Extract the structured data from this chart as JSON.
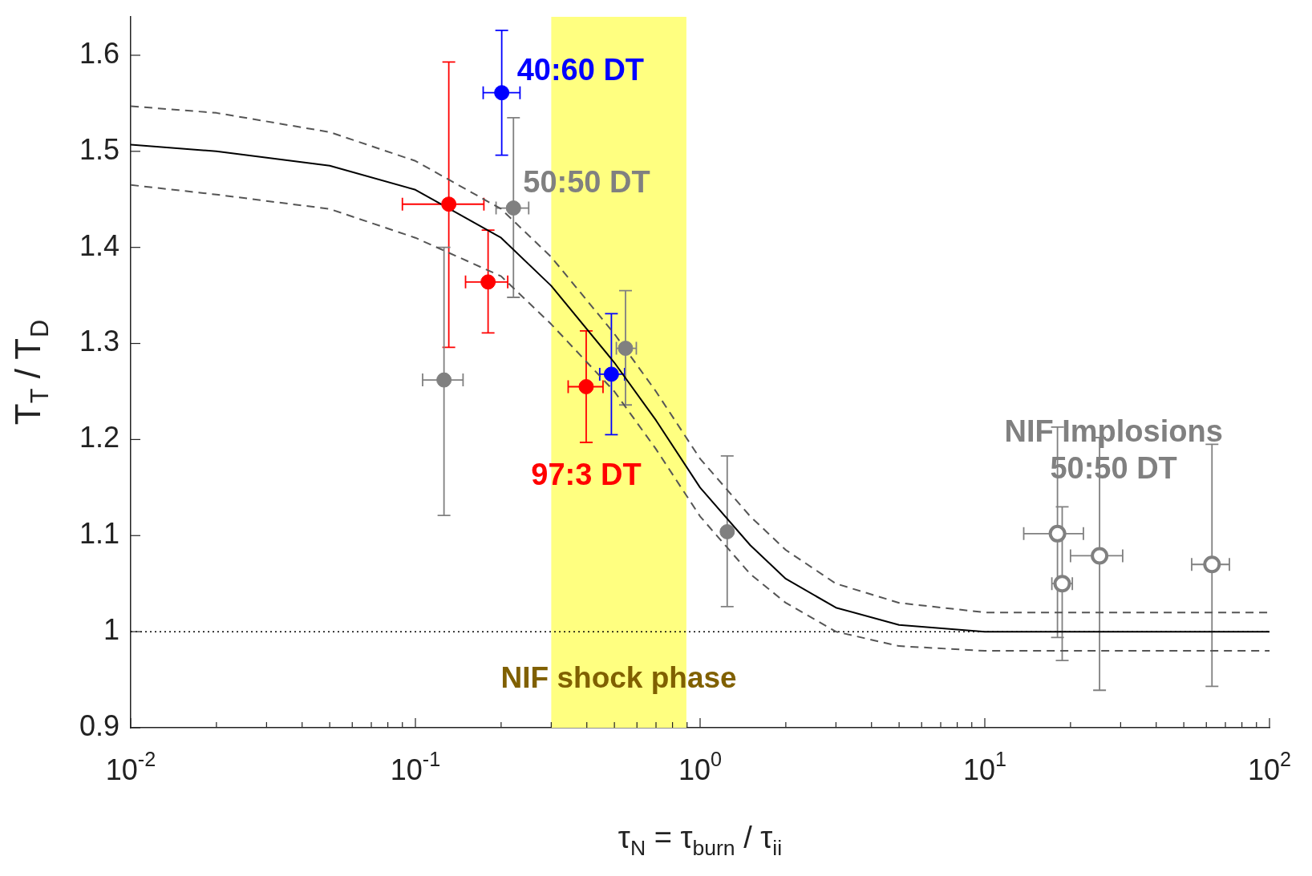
{
  "chart_data": {
    "type": "scatter",
    "xlabel": "τ$_{N}$ = τ$_{burn}$ / τ$_{ii}$",
    "ylabel": "T$_{T}$ / T$_{D}$",
    "log": "x",
    "xlim": [
      0.01,
      100
    ],
    "ylim": [
      0.9,
      1.64
    ],
    "xticks": [
      {
        "value": 0.01,
        "label": "10$^{-2}$"
      },
      {
        "value": 0.02,
        "label": null
      },
      {
        "value": 0.03,
        "label": null
      },
      {
        "value": 0.04,
        "label": null
      },
      {
        "value": 0.05,
        "label": null
      },
      {
        "value": 0.06,
        "label": null
      },
      {
        "value": 0.07,
        "label": null
      },
      {
        "value": 0.08,
        "label": null
      },
      {
        "value": 0.09,
        "label": null
      },
      {
        "value": 0.1,
        "label": "10$^{-1}$"
      },
      {
        "value": 0.2,
        "label": null
      },
      {
        "value": 0.3,
        "label": null
      },
      {
        "value": 0.4,
        "label": null
      },
      {
        "value": 0.5,
        "label": null
      },
      {
        "value": 0.6,
        "label": null
      },
      {
        "value": 0.7,
        "label": null
      },
      {
        "value": 0.8,
        "label": null
      },
      {
        "value": 0.9,
        "label": null
      },
      {
        "value": 1,
        "label": "10$^{0}$"
      },
      {
        "value": 2,
        "label": null
      },
      {
        "value": 3,
        "label": null
      },
      {
        "value": 4,
        "label": null
      },
      {
        "value": 5,
        "label": null
      },
      {
        "value": 6,
        "label": null
      },
      {
        "value": 7,
        "label": null
      },
      {
        "value": 8,
        "label": null
      },
      {
        "value": 9,
        "label": null
      },
      {
        "value": 10,
        "label": "10$^{1}$"
      },
      {
        "value": 20,
        "label": null
      },
      {
        "value": 30,
        "label": null
      },
      {
        "value": 40,
        "label": null
      },
      {
        "value": 50,
        "label": null
      },
      {
        "value": 60,
        "label": null
      },
      {
        "value": 70,
        "label": null
      },
      {
        "value": 80,
        "label": null
      },
      {
        "value": 90,
        "label": null
      },
      {
        "value": 100,
        "label": "10$^{2}$"
      }
    ],
    "yticks": [
      0.9,
      1,
      1.1,
      1.2,
      1.3,
      1.4,
      1.5,
      1.6
    ],
    "grid": false,
    "legend": false,
    "series": [
      {
        "name": "97:3 DT",
        "marker": "circle",
        "color": "#ff0000",
        "x": [
          0.131,
          0.18,
          0.398
        ],
        "values": [
          1.445,
          1.364,
          1.255
        ],
        "errors": [
          [
            1.296,
            1.593
          ],
          [
            1.311,
            1.418
          ],
          [
            1.197,
            1.313
          ]
        ],
        "xerrors": [
          [
            0.09,
            0.174
          ],
          [
            0.15,
            0.211
          ],
          [
            0.344,
            0.456
          ]
        ]
      },
      {
        "name": "40:60 DT",
        "marker": "circle",
        "color": "#0000ff",
        "x": [
          0.201,
          0.488
        ],
        "values": [
          1.561,
          1.268
        ],
        "errors": [
          [
            1.496,
            1.626
          ],
          [
            1.205,
            1.331
          ]
        ],
        "xerrors": [
          [
            0.173,
            0.233
          ],
          [
            0.444,
            0.543
          ]
        ]
      },
      {
        "name": "50:50 DT",
        "marker": "circle",
        "color": "#808080",
        "x": [
          0.126,
          0.221,
          0.547,
          1.245
        ],
        "values": [
          1.262,
          1.441,
          1.295,
          1.104
        ],
        "errors": [
          [
            1.121,
            1.4
          ],
          [
            1.348,
            1.535
          ],
          [
            1.236,
            1.355
          ],
          [
            1.026,
            1.183
          ]
        ],
        "xerrors": [
          [
            0.106,
            0.147
          ],
          [
            0.192,
            0.25
          ],
          [
            0.508,
            0.597
          ],
          null
        ]
      },
      {
        "name": "NIF Implosions\n50:50 DT",
        "marker": "circle",
        "color": "#808080",
        "x": [
          18.0,
          18.7,
          25.3,
          62.8
        ],
        "values": [
          1.102,
          1.05,
          1.079,
          1.07
        ],
        "errors": [
          [
            0.994,
            1.213
          ],
          [
            0.97,
            1.13
          ],
          [
            0.939,
            1.202
          ],
          [
            0.943,
            1.195
          ]
        ],
        "xerrors": [
          [
            13.7,
            22.2
          ],
          [
            17.2,
            20.3
          ],
          [
            20.0,
            30.5
          ],
          [
            53.3,
            72.3
          ]
        ]
      },
      {
        "type": "line",
        "marker": "none",
        "line_style": "solid",
        "color": "#000000",
        "x": [
          0.01,
          0.02,
          0.05,
          0.1,
          0.2,
          0.3,
          0.5,
          0.7,
          1,
          1.5,
          2,
          3,
          5,
          10,
          100
        ],
        "values": [
          1.507,
          1.5,
          1.485,
          1.46,
          1.41,
          1.36,
          1.28,
          1.22,
          1.15,
          1.09,
          1.055,
          1.025,
          1.007,
          1.0,
          1.0
        ]
      },
      {
        "type": "line",
        "marker": "none",
        "line_style": "dashed",
        "color": "#555555",
        "x": [
          0.01,
          0.02,
          0.05,
          0.1,
          0.2,
          0.3,
          0.5,
          0.7,
          1,
          1.5,
          2,
          3,
          5,
          10,
          100
        ],
        "values": [
          1.547,
          1.54,
          1.52,
          1.49,
          1.44,
          1.39,
          1.31,
          1.25,
          1.18,
          1.12,
          1.085,
          1.05,
          1.03,
          1.02,
          1.02
        ]
      },
      {
        "type": "line",
        "marker": "none",
        "line_style": "dashed",
        "color": "#555555",
        "x": [
          0.01,
          0.02,
          0.05,
          0.1,
          0.2,
          0.3,
          0.5,
          0.7,
          1,
          1.5,
          2,
          3,
          5,
          10,
          100
        ],
        "values": [
          1.465,
          1.455,
          1.44,
          1.41,
          1.37,
          1.32,
          1.25,
          1.19,
          1.12,
          1.06,
          1.03,
          1.0,
          0.985,
          0.98,
          0.98
        ]
      }
    ],
    "ref_lines": [
      {
        "axis": "y",
        "value": 1,
        "color": "#000000",
        "line_style": "dotted"
      }
    ],
    "bands": [
      {
        "axis": "x",
        "from": 0.3,
        "to": 0.895,
        "label": "NIF shock phase",
        "color": "#ffff80"
      }
    ]
  }
}
